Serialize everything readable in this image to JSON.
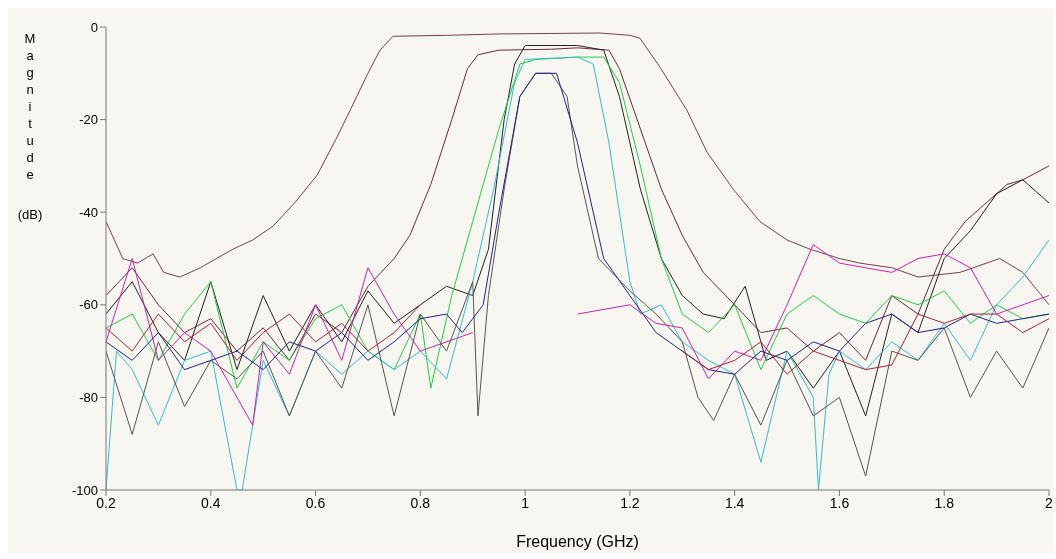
{
  "chart_data": {
    "type": "line",
    "xlabel": "Frequency (GHz)",
    "ylabel": "Magnitude (dB)",
    "xlim": [
      0.2,
      2
    ],
    "xticks": [
      0.2,
      0.4,
      0.6,
      0.8,
      1,
      1.2,
      1.4,
      1.6,
      1.8,
      2
    ],
    "ylim": [
      -100,
      0
    ],
    "yticks": [
      -100,
      -80,
      -60,
      -40,
      -20,
      0
    ],
    "grid": false,
    "marker": "none",
    "line_style": "solid",
    "series": [
      {
        "color": "#7b3f4f",
        "x": [
          0.2,
          0.232,
          0.26,
          0.29,
          0.31,
          0.341,
          0.38,
          0.442,
          0.48,
          0.519,
          0.56,
          0.603,
          0.64,
          0.666,
          0.7,
          0.723,
          0.748,
          0.85,
          0.952,
          1.05,
          1.143,
          1.2,
          1.219,
          1.257,
          1.309,
          1.347,
          1.397,
          1.448,
          1.5,
          1.544,
          1.6,
          1.639,
          1.7,
          1.75,
          1.83,
          1.906,
          1.95,
          2.0
        ],
        "values": [
          -42,
          -50,
          -51,
          -49,
          -53,
          -54,
          -52,
          -48,
          -46,
          -43,
          -38,
          -32,
          -24,
          -18,
          -10,
          -5,
          -2,
          -1.8,
          -1.5,
          -1.4,
          -1.3,
          -1.8,
          -2.4,
          -8.6,
          -18,
          -27,
          -35,
          -42,
          -46,
          -48,
          -50,
          -51,
          -52,
          -54,
          -53,
          -50,
          -53,
          -60
        ]
      },
      {
        "color": "#6b2b3a",
        "x": [
          0.2,
          0.25,
          0.3,
          0.35,
          0.4,
          0.45,
          0.5,
          0.55,
          0.6,
          0.65,
          0.7,
          0.75,
          0.78,
          0.82,
          0.86,
          0.89,
          0.91,
          0.95,
          1.05,
          1.1,
          1.16,
          1.18,
          1.22,
          1.26,
          1.3,
          1.34,
          1.4,
          1.45,
          1.5,
          1.55,
          1.6,
          1.65,
          1.7,
          1.75,
          1.8,
          1.84,
          1.88,
          1.92,
          1.95,
          2.0
        ],
        "values": [
          -58,
          -52,
          -60,
          -66,
          -63,
          -70,
          -65,
          -72,
          -62,
          -66,
          -56,
          -50,
          -45,
          -34,
          -20,
          -9,
          -6,
          -5,
          -4.8,
          -4.5,
          -5,
          -9,
          -22,
          -35,
          -45,
          -53,
          -60,
          -66,
          -65,
          -70,
          -66,
          -72,
          -58,
          -62,
          -48,
          -42,
          -38,
          -34,
          -33,
          -30
        ]
      },
      {
        "color": "#222222",
        "x": [
          0.2,
          0.25,
          0.3,
          0.35,
          0.4,
          0.45,
          0.5,
          0.55,
          0.6,
          0.65,
          0.7,
          0.75,
          0.8,
          0.85,
          0.9,
          0.93,
          0.96,
          0.98,
          1.0,
          1.1,
          1.15,
          1.18,
          1.22,
          1.26,
          1.3,
          1.34,
          1.38,
          1.42,
          1.46,
          1.5,
          1.55,
          1.6,
          1.65,
          1.7,
          1.75,
          1.8,
          1.85,
          1.9,
          1.95,
          2.0
        ],
        "values": [
          -62,
          -55,
          -66,
          -72,
          -55,
          -74,
          -58,
          -70,
          -60,
          -68,
          -57,
          -64,
          -60,
          -56,
          -58,
          -48,
          -20,
          -8,
          -4,
          -4,
          -5,
          -15,
          -35,
          -50,
          -58,
          -62,
          -63,
          -56,
          -72,
          -70,
          -78,
          -70,
          -84,
          -62,
          -66,
          -50,
          -44,
          -36,
          -33,
          -38
        ]
      },
      {
        "color": "#22cc44",
        "x": [
          0.2,
          0.25,
          0.3,
          0.35,
          0.4,
          0.45,
          0.5,
          0.55,
          0.6,
          0.65,
          0.7,
          0.75,
          0.8,
          0.82,
          0.86,
          0.9,
          0.95,
          0.99,
          1.02,
          1.1,
          1.15,
          1.18,
          1.22,
          1.26,
          1.3,
          1.35,
          1.4,
          1.45,
          1.5,
          1.55,
          1.6,
          1.65,
          1.7,
          1.75,
          1.8,
          1.85,
          1.9,
          1.95,
          2.0
        ],
        "values": [
          -65,
          -62,
          -72,
          -62,
          -55,
          -78,
          -68,
          -72,
          -63,
          -60,
          -70,
          -74,
          -62,
          -78,
          -58,
          -42,
          -22,
          -8,
          -7,
          -6.5,
          -6.5,
          -12,
          -30,
          -50,
          -62,
          -66,
          -60,
          -74,
          -62,
          -58,
          -62,
          -64,
          -58,
          -60,
          -57,
          -64,
          -60,
          -63,
          -62
        ]
      },
      {
        "color": "#33bbcc",
        "x": [
          0.2,
          0.22,
          0.25,
          0.3,
          0.35,
          0.4,
          0.45,
          0.46,
          0.5,
          0.55,
          0.6,
          0.65,
          0.7,
          0.75,
          0.8,
          0.85,
          0.9,
          0.94,
          0.98,
          1.0,
          1.1,
          1.13,
          1.16,
          1.2,
          1.22,
          1.26,
          1.3,
          1.35,
          1.4,
          1.45,
          1.5,
          1.55,
          1.56,
          1.58,
          1.6,
          1.65,
          1.7,
          1.75,
          1.8,
          1.85,
          1.9,
          1.95,
          2.0
        ],
        "values": [
          -100,
          -70,
          -74,
          -86,
          -72,
          -70,
          -100,
          -100,
          -72,
          -84,
          -70,
          -75,
          -70,
          -74,
          -70,
          -76,
          -55,
          -35,
          -12,
          -7,
          -6.5,
          -8,
          -25,
          -55,
          -62,
          -60,
          -68,
          -72,
          -75,
          -94,
          -70,
          -80,
          -100,
          -75,
          -70,
          -74,
          -68,
          -72,
          -64,
          -72,
          -60,
          -54,
          -46
        ]
      },
      {
        "color": "#555555",
        "x": [
          0.2,
          0.25,
          0.3,
          0.35,
          0.4,
          0.45,
          0.5,
          0.55,
          0.6,
          0.65,
          0.7,
          0.75,
          0.8,
          0.85,
          0.9,
          0.91,
          0.93,
          0.96,
          0.99,
          1.02,
          1.05,
          1.08,
          1.1,
          1.14,
          1.2,
          1.25,
          1.3,
          1.33,
          1.36,
          1.4,
          1.45,
          1.5,
          1.55,
          1.6,
          1.65,
          1.7,
          1.75,
          1.8,
          1.85,
          1.9,
          1.95,
          2.0
        ],
        "values": [
          -70,
          -88,
          -68,
          -82,
          -72,
          -76,
          -70,
          -84,
          -70,
          -78,
          -60,
          -84,
          -62,
          -70,
          -55,
          -84,
          -58,
          -35,
          -15,
          -10,
          -10,
          -15,
          -30,
          -50,
          -57,
          -62,
          -68,
          -80,
          -85,
          -75,
          -86,
          -72,
          -84,
          -80,
          -97,
          -70,
          -72,
          -65,
          -80,
          -70,
          -78,
          -65
        ]
      },
      {
        "color": "#cc22aa",
        "x": [
          0.2,
          0.25,
          0.3,
          0.35,
          0.4,
          0.45,
          0.48,
          0.5,
          0.55,
          0.6,
          0.65,
          0.7,
          0.75,
          0.8,
          0.9,
          1.0,
          1.1,
          1.2,
          1.25,
          1.3,
          1.35,
          1.4,
          1.45,
          1.5,
          1.55,
          1.6,
          1.65,
          1.7,
          1.75,
          1.8,
          1.85,
          1.9,
          1.95,
          2.0
        ],
        "values": [
          -68,
          -50,
          -72,
          -66,
          -70,
          -80,
          -86,
          -68,
          -75,
          -60,
          -72,
          -52,
          -62,
          -70,
          -66,
          null,
          -62,
          -60,
          -64,
          -65,
          -76,
          -70,
          -72,
          -60,
          -47,
          -51,
          -52,
          -53,
          -50,
          -49,
          -52,
          -62,
          -60,
          -58
        ]
      },
      {
        "color": "#222288",
        "x": [
          0.2,
          0.25,
          0.3,
          0.35,
          0.4,
          0.45,
          0.5,
          0.55,
          0.6,
          0.65,
          0.7,
          0.75,
          0.8,
          0.85,
          0.88,
          0.92,
          0.95,
          0.99,
          1.02,
          1.06,
          1.1,
          1.15,
          1.2,
          1.25,
          1.3,
          1.35,
          1.4,
          1.45,
          1.5,
          1.55,
          1.6,
          1.65,
          1.7,
          1.75,
          1.8,
          1.85,
          1.9,
          1.95,
          2.0
        ],
        "values": [
          -68,
          -72,
          -66,
          -74,
          -72,
          -70,
          -74,
          -68,
          -70,
          -66,
          -72,
          -68,
          -63,
          -62,
          -66,
          -60,
          -40,
          -15,
          -10,
          -10,
          -25,
          -50,
          -58,
          -66,
          -70,
          -74,
          -75,
          -70,
          -72,
          -68,
          -70,
          -64,
          -62,
          -66,
          -65,
          -62,
          -64,
          -63,
          -62
        ]
      },
      {
        "color": "#aa2233",
        "x": [
          0.2,
          0.25,
          0.3,
          0.35,
          0.4,
          0.45,
          0.5,
          0.55,
          0.6,
          0.65,
          0.7,
          0.75,
          0.8,
          1.0,
          1.3,
          1.35,
          1.4,
          1.45,
          1.5,
          1.55,
          1.6,
          1.65,
          1.7,
          1.75,
          1.8,
          1.85,
          1.9,
          1.95,
          2.0
        ],
        "values": [
          -65,
          -70,
          -62,
          -68,
          -64,
          -72,
          -66,
          -62,
          -68,
          -64,
          -70,
          -66,
          -60,
          null,
          -70,
          -74,
          -72,
          -68,
          -75,
          -70,
          -72,
          -74,
          -73,
          -62,
          -64,
          -62,
          -62,
          -66,
          -63
        ]
      }
    ]
  }
}
